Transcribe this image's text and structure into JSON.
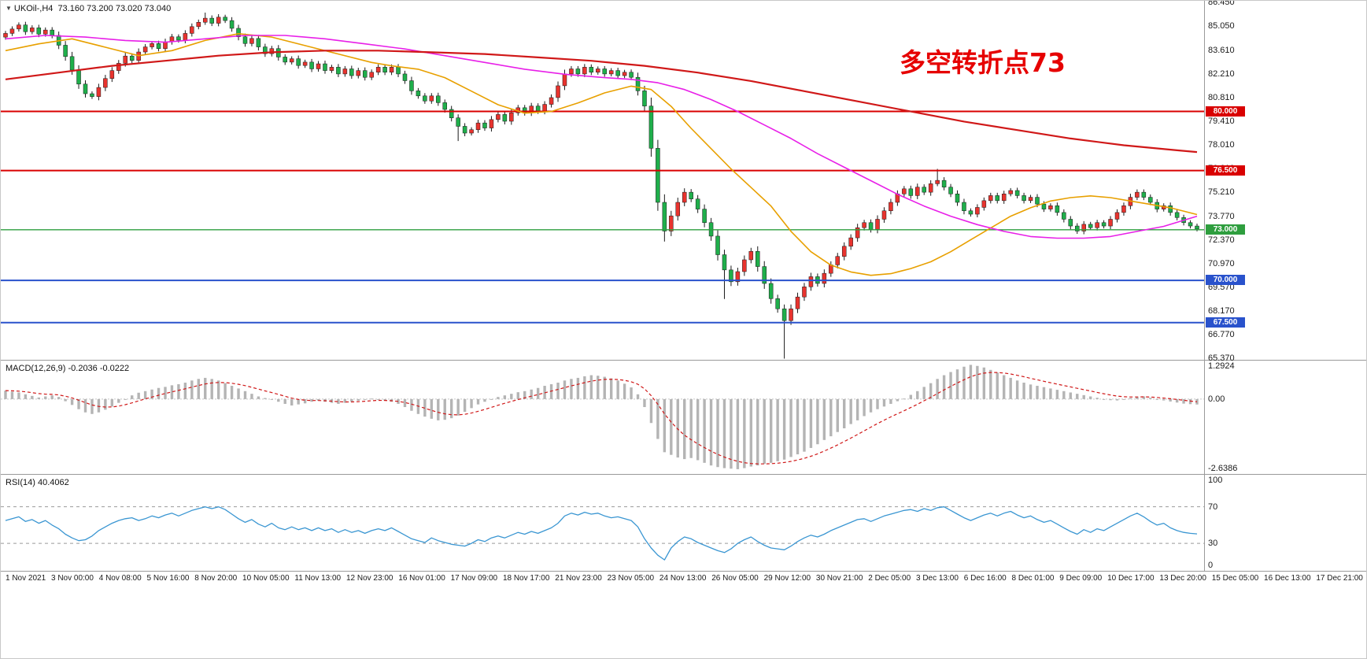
{
  "header": {
    "symbol": "UKOil-,H4",
    "ohlc": "73.160 73.200 73.020 73.040"
  },
  "annotation": {
    "text": "多空转折点73",
    "color": "#e60000"
  },
  "colors": {
    "bull": "#e8332e",
    "bear": "#1faf4b",
    "candle_outline": "#1a1a1a",
    "ma_fast": "#e8a000",
    "ma_mid": "#e820e8",
    "ma_slow": "#d01818",
    "macd_hist": "#b4b4b4",
    "macd_signal": "#d01818",
    "macd_zero": "#c8c8c8",
    "rsi_line": "#3a96d2",
    "rsi_level": "#9a9a9a",
    "level_red": "#d90000",
    "level_green": "#2e9e3e",
    "level_blue": "#2952cc"
  },
  "chart_data": [
    {
      "type": "candlestick",
      "panel": "main",
      "symbol": "UKOil-",
      "timeframe": "H4",
      "ylim": [
        65.3,
        86.55
      ],
      "price_ticks": [
        "86.450",
        "85.050",
        "83.610",
        "82.210",
        "80.810",
        "79.410",
        "78.010",
        "76.610",
        "75.210",
        "73.770",
        "72.370",
        "70.970",
        "69.570",
        "68.170",
        "66.770",
        "65.370"
      ],
      "open_first": 84.4,
      "closes": [
        84.62,
        84.88,
        85.12,
        84.72,
        84.95,
        84.58,
        84.82,
        84.5,
        83.92,
        83.25,
        82.45,
        81.62,
        81.05,
        80.88,
        81.42,
        81.95,
        82.42,
        82.85,
        83.28,
        83.02,
        83.52,
        83.82,
        84.02,
        83.72,
        84.12,
        84.42,
        84.22,
        84.62,
        85.02,
        85.28,
        85.52,
        85.22,
        85.58,
        85.38,
        84.92,
        84.42,
        84.02,
        84.32,
        83.82,
        83.42,
        83.72,
        83.22,
        82.92,
        83.12,
        82.72,
        82.92,
        82.52,
        82.82,
        82.42,
        82.62,
        82.22,
        82.52,
        82.12,
        82.42,
        82.02,
        82.32,
        82.62,
        82.32,
        82.62,
        82.22,
        81.82,
        81.22,
        80.92,
        80.62,
        80.92,
        80.52,
        80.12,
        79.62,
        79.12,
        78.72,
        78.92,
        79.32,
        79.02,
        79.52,
        79.82,
        79.42,
        79.92,
        80.22,
        79.92,
        80.32,
        80.02,
        80.42,
        80.82,
        81.52,
        82.22,
        82.52,
        82.22,
        82.62,
        82.32,
        82.52,
        82.22,
        82.42,
        82.12,
        82.32,
        82.02,
        81.22,
        80.32,
        77.82,
        74.62,
        72.92,
        73.82,
        74.62,
        75.22,
        74.82,
        74.22,
        73.42,
        72.62,
        71.52,
        70.62,
        69.92,
        70.52,
        71.22,
        71.72,
        70.82,
        69.82,
        68.92,
        68.32,
        67.62,
        68.32,
        69.02,
        69.62,
        70.22,
        69.82,
        70.42,
        70.92,
        71.42,
        72.02,
        72.52,
        73.12,
        73.42,
        73.02,
        73.62,
        74.12,
        74.62,
        75.12,
        75.42,
        75.02,
        75.52,
        75.22,
        75.72,
        75.92,
        75.52,
        75.12,
        74.62,
        74.12,
        73.92,
        74.32,
        74.72,
        75.02,
        74.72,
        75.12,
        75.32,
        75.02,
        74.72,
        74.92,
        74.52,
        74.22,
        74.42,
        74.02,
        73.62,
        73.22,
        72.92,
        73.32,
        73.12,
        73.42,
        73.22,
        73.62,
        74.02,
        74.42,
        74.92,
        75.22,
        74.92,
        74.62,
        74.22,
        74.42,
        74.02,
        73.72,
        73.42,
        73.22,
        73.04
      ],
      "wick_overrides": {
        "30": [
          85.85,
          null
        ],
        "68": [
          null,
          78.25
        ],
        "99": [
          null,
          72.3
        ],
        "108": [
          null,
          68.9
        ],
        "117": [
          null,
          65.37
        ],
        "140": [
          76.6,
          null
        ]
      },
      "hlines": [
        {
          "price": 80.0,
          "label": "80.000",
          "color_key": "level_red",
          "width": 2
        },
        {
          "price": 76.5,
          "label": "76.500",
          "color_key": "level_red",
          "width": 2
        },
        {
          "price": 73.0,
          "label": "73.000",
          "color_key": "level_green",
          "width": 1.4
        },
        {
          "price": 70.0,
          "label": "70.000",
          "color_key": "level_blue",
          "width": 2
        },
        {
          "price": 67.5,
          "label": "67.500",
          "color_key": "level_blue",
          "width": 2
        }
      ],
      "ma_lines": [
        {
          "name": "ma-fast-orange",
          "color_key": "ma_fast",
          "stroke": 1.6,
          "points": [
            [
              0,
              83.6
            ],
            [
              5,
              84.0
            ],
            [
              10,
              84.3
            ],
            [
              15,
              83.8
            ],
            [
              20,
              83.3
            ],
            [
              25,
              83.6
            ],
            [
              30,
              84.2
            ],
            [
              35,
              84.6
            ],
            [
              40,
              84.4
            ],
            [
              45,
              83.9
            ],
            [
              50,
              83.4
            ],
            [
              55,
              82.9
            ],
            [
              58,
              82.7
            ],
            [
              62,
              82.5
            ],
            [
              66,
              82.0
            ],
            [
              70,
              81.2
            ],
            [
              74,
              80.4
            ],
            [
              78,
              79.9
            ],
            [
              82,
              80.0
            ],
            [
              86,
              80.5
            ],
            [
              90,
              81.1
            ],
            [
              94,
              81.5
            ],
            [
              97,
              81.3
            ],
            [
              100,
              80.3
            ],
            [
              103,
              79.0
            ],
            [
              106,
              77.8
            ],
            [
              109,
              76.6
            ],
            [
              112,
              75.5
            ],
            [
              115,
              74.4
            ],
            [
              118,
              72.9
            ],
            [
              121,
              71.7
            ],
            [
              124,
              70.9
            ],
            [
              127,
              70.5
            ],
            [
              130,
              70.3
            ],
            [
              133,
              70.4
            ],
            [
              136,
              70.7
            ],
            [
              139,
              71.1
            ],
            [
              142,
              71.7
            ],
            [
              145,
              72.4
            ],
            [
              148,
              73.1
            ],
            [
              151,
              73.8
            ],
            [
              154,
              74.3
            ],
            [
              157,
              74.7
            ],
            [
              160,
              74.9
            ],
            [
              163,
              75.0
            ],
            [
              166,
              74.9
            ],
            [
              169,
              74.7
            ],
            [
              172,
              74.5
            ],
            [
              175,
              74.3
            ],
            [
              179,
              73.9
            ]
          ]
        },
        {
          "name": "ma-mid-magenta",
          "color_key": "ma_mid",
          "stroke": 1.6,
          "points": [
            [
              0,
              84.3
            ],
            [
              6,
              84.5
            ],
            [
              12,
              84.4
            ],
            [
              18,
              84.2
            ],
            [
              24,
              84.1
            ],
            [
              30,
              84.3
            ],
            [
              36,
              84.5
            ],
            [
              42,
              84.5
            ],
            [
              48,
              84.3
            ],
            [
              54,
              84.0
            ],
            [
              60,
              83.7
            ],
            [
              66,
              83.3
            ],
            [
              72,
              82.9
            ],
            [
              78,
              82.5
            ],
            [
              84,
              82.2
            ],
            [
              90,
              82.0
            ],
            [
              94,
              81.9
            ],
            [
              98,
              81.7
            ],
            [
              102,
              81.3
            ],
            [
              106,
              80.7
            ],
            [
              110,
              80.0
            ],
            [
              114,
              79.2
            ],
            [
              118,
              78.4
            ],
            [
              122,
              77.5
            ],
            [
              126,
              76.7
            ],
            [
              130,
              75.9
            ],
            [
              134,
              75.1
            ],
            [
              138,
              74.4
            ],
            [
              142,
              73.8
            ],
            [
              146,
              73.3
            ],
            [
              150,
              72.9
            ],
            [
              154,
              72.6
            ],
            [
              158,
              72.5
            ],
            [
              162,
              72.5
            ],
            [
              166,
              72.6
            ],
            [
              170,
              72.9
            ],
            [
              174,
              73.2
            ],
            [
              179,
              73.8
            ]
          ]
        },
        {
          "name": "ma-slow-red",
          "color_key": "ma_slow",
          "stroke": 2.2,
          "points": [
            [
              0,
              81.9
            ],
            [
              8,
              82.3
            ],
            [
              16,
              82.7
            ],
            [
              24,
              83.0
            ],
            [
              32,
              83.3
            ],
            [
              40,
              83.5
            ],
            [
              48,
              83.6
            ],
            [
              56,
              83.6
            ],
            [
              64,
              83.5
            ],
            [
              72,
              83.4
            ],
            [
              80,
              83.2
            ],
            [
              88,
              83.0
            ],
            [
              96,
              82.7
            ],
            [
              104,
              82.3
            ],
            [
              112,
              81.8
            ],
            [
              120,
              81.2
            ],
            [
              128,
              80.6
            ],
            [
              136,
              80.0
            ],
            [
              144,
              79.4
            ],
            [
              152,
              78.9
            ],
            [
              160,
              78.4
            ],
            [
              168,
              78.0
            ],
            [
              176,
              77.7
            ],
            [
              179,
              77.6
            ]
          ]
        }
      ]
    },
    {
      "type": "bar",
      "panel": "macd",
      "label": "MACD(12,26,9)",
      "current_values": "-0.2036 -0.0222",
      "ylim": [
        -2.82,
        1.45
      ],
      "ticks": [
        {
          "v": 1.2924,
          "label": "1.2924"
        },
        {
          "v": 0,
          "label": "0.00"
        },
        {
          "v": -2.6386,
          "label": "-2.6386"
        }
      ],
      "values": [
        0.32,
        0.28,
        0.25,
        0.18,
        0.12,
        0.06,
        0.1,
        0.14,
        0.08,
        -0.08,
        -0.22,
        -0.38,
        -0.5,
        -0.56,
        -0.5,
        -0.4,
        -0.28,
        -0.14,
        0.0,
        0.14,
        0.24,
        0.3,
        0.36,
        0.42,
        0.46,
        0.52,
        0.56,
        0.62,
        0.7,
        0.76,
        0.8,
        0.76,
        0.7,
        0.6,
        0.5,
        0.4,
        0.3,
        0.2,
        0.1,
        0.04,
        0.0,
        -0.1,
        -0.18,
        -0.24,
        -0.2,
        -0.16,
        -0.1,
        -0.06,
        -0.1,
        -0.14,
        -0.18,
        -0.14,
        -0.1,
        -0.06,
        -0.02,
        0.02,
        0.0,
        -0.06,
        -0.1,
        -0.18,
        -0.3,
        -0.44,
        -0.56,
        -0.66,
        -0.74,
        -0.8,
        -0.78,
        -0.72,
        -0.62,
        -0.48,
        -0.34,
        -0.2,
        -0.1,
        0.0,
        0.08,
        0.14,
        0.2,
        0.26,
        0.3,
        0.36,
        0.42,
        0.5,
        0.56,
        0.62,
        0.7,
        0.76,
        0.8,
        0.86,
        0.9,
        0.88,
        0.84,
        0.78,
        0.7,
        0.58,
        0.44,
        0.18,
        -0.3,
        -0.9,
        -1.5,
        -2.0,
        -2.1,
        -2.2,
        -2.26,
        -2.22,
        -2.3,
        -2.4,
        -2.5,
        -2.56,
        -2.6,
        -2.62,
        -2.64,
        -2.6,
        -2.54,
        -2.5,
        -2.44,
        -2.4,
        -2.34,
        -2.28,
        -2.18,
        -2.08,
        -1.98,
        -1.84,
        -1.7,
        -1.54,
        -1.4,
        -1.24,
        -1.1,
        -0.94,
        -0.8,
        -0.64,
        -0.5,
        -0.38,
        -0.28,
        -0.18,
        -0.08,
        0.02,
        0.16,
        0.3,
        0.46,
        0.6,
        0.76,
        0.9,
        1.02,
        1.12,
        1.22,
        1.29,
        1.25,
        1.19,
        1.1,
        1.0,
        0.9,
        0.8,
        0.7,
        0.62,
        0.55,
        0.5,
        0.45,
        0.4,
        0.35,
        0.3,
        0.25,
        0.2,
        0.15,
        0.1,
        0.05,
        0.0,
        -0.04,
        -0.05,
        -0.01,
        0.04,
        0.09,
        0.1,
        0.05,
        0.0,
        -0.05,
        -0.09,
        -0.13,
        -0.17,
        -0.19,
        -0.2036
      ]
    },
    {
      "type": "line",
      "panel": "rsi",
      "label": "RSI(14)",
      "current_value": "40.4062",
      "ylim": [
        0,
        105
      ],
      "levels": [
        70,
        30
      ],
      "ticks": [
        {
          "v": 100,
          "label": "100"
        },
        {
          "v": 70,
          "label": "70"
        },
        {
          "v": 30,
          "label": "30"
        },
        {
          "v": 0,
          "label": "0"
        }
      ],
      "values": [
        55,
        57,
        59,
        54,
        56,
        52,
        55,
        50,
        46,
        40,
        36,
        33,
        34,
        38,
        44,
        48,
        52,
        55,
        57,
        58,
        55,
        57,
        60,
        58,
        61,
        63,
        60,
        63,
        66,
        68,
        70,
        68,
        70,
        67,
        62,
        57,
        53,
        56,
        51,
        48,
        52,
        47,
        45,
        48,
        45,
        47,
        44,
        47,
        44,
        46,
        42,
        45,
        42,
        44,
        41,
        44,
        46,
        44,
        47,
        43,
        39,
        35,
        33,
        31,
        36,
        33,
        31,
        29,
        28,
        27,
        30,
        34,
        32,
        36,
        38,
        36,
        39,
        42,
        40,
        43,
        41,
        44,
        47,
        52,
        60,
        63,
        61,
        64,
        62,
        63,
        60,
        58,
        59,
        57,
        55,
        48,
        35,
        25,
        17,
        12,
        25,
        32,
        37,
        35,
        31,
        28,
        25,
        22,
        20,
        24,
        30,
        34,
        37,
        32,
        28,
        25,
        24,
        23,
        27,
        32,
        36,
        39,
        37,
        40,
        44,
        47,
        50,
        53,
        56,
        57,
        54,
        57,
        60,
        62,
        64,
        66,
        67,
        65,
        68,
        66,
        69,
        70,
        66,
        62,
        58,
        55,
        58,
        61,
        63,
        60,
        63,
        65,
        61,
        58,
        60,
        56,
        53,
        55,
        51,
        47,
        43,
        40,
        45,
        42,
        46,
        44,
        48,
        52,
        56,
        60,
        63,
        59,
        54,
        50,
        52,
        47,
        44,
        42,
        41,
        40.4
      ]
    }
  ],
  "time_axis": {
    "labels": [
      "1 Nov 2021",
      "3 Nov 00:00",
      "4 Nov 08:00",
      "5 Nov 16:00",
      "8 Nov 20:00",
      "10 Nov 05:00",
      "11 Nov 13:00",
      "12 Nov 23:00",
      "16 Nov 01:00",
      "17 Nov 09:00",
      "18 Nov 17:00",
      "21 Nov 23:00",
      "23 Nov 05:00",
      "24 Nov 13:00",
      "26 Nov 05:00",
      "29 Nov 12:00",
      "30 Nov 21:00",
      "2 Dec 05:00",
      "3 Dec 13:00",
      "6 Dec 16:00",
      "8 Dec 01:00",
      "9 Dec 09:00",
      "10 Dec 17:00",
      "13 Dec 20:00",
      "15 Dec 05:00",
      "16 Dec 13:00",
      "17 Dec 21:00"
    ]
  }
}
